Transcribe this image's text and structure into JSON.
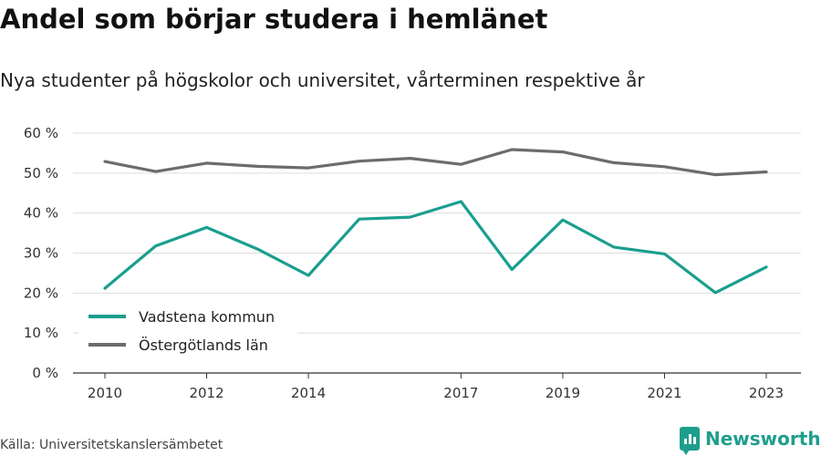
{
  "header": {
    "title": "Andel som börjar studera i hemlänet",
    "subtitle": "Nya studenter på högskolor och universitet, vårterminen respektive år"
  },
  "footer": {
    "source": "Källa: Universitetskanslersämbetet",
    "brand": "Newsworthy",
    "brand_icon": "bar-chart-icon"
  },
  "colors": {
    "vadstena": "#1a9e8f",
    "ostergotland": "#6b6b70",
    "brand": "#1f9e8d",
    "grid": "#dddddd"
  },
  "chart_data": {
    "type": "line",
    "title": "Andel som börjar studera i hemlänet",
    "subtitle": "Nya studenter på högskolor och universitet, vårterminen respektive år",
    "xlabel": "",
    "ylabel": "",
    "x": [
      2010,
      2011,
      2012,
      2013,
      2014,
      2015,
      2016,
      2017,
      2018,
      2019,
      2020,
      2021,
      2022,
      2023
    ],
    "x_tick_labels": [
      "2010",
      "2012",
      "2014",
      "2017",
      "2019",
      "2021",
      "2023"
    ],
    "y_tick_labels": [
      "0 %",
      "10 %",
      "20 %",
      "30 %",
      "40 %",
      "50 %",
      "60 %"
    ],
    "ylim": [
      0,
      60
    ],
    "grid": true,
    "legend_position": "bottom-left",
    "series": [
      {
        "name": "Vadstena kommun",
        "color": "#1a9e8f",
        "values": [
          21.2,
          31.8,
          36.4,
          31.0,
          24.4,
          38.5,
          39.0,
          42.9,
          25.9,
          38.3,
          31.5,
          29.8,
          20.1,
          26.5
        ]
      },
      {
        "name": "Östergötlands län",
        "color": "#6b6b70",
        "values": [
          52.9,
          50.4,
          52.5,
          51.7,
          51.3,
          53.0,
          53.7,
          52.2,
          55.9,
          55.3,
          52.6,
          51.6,
          49.6,
          50.3
        ]
      }
    ]
  }
}
